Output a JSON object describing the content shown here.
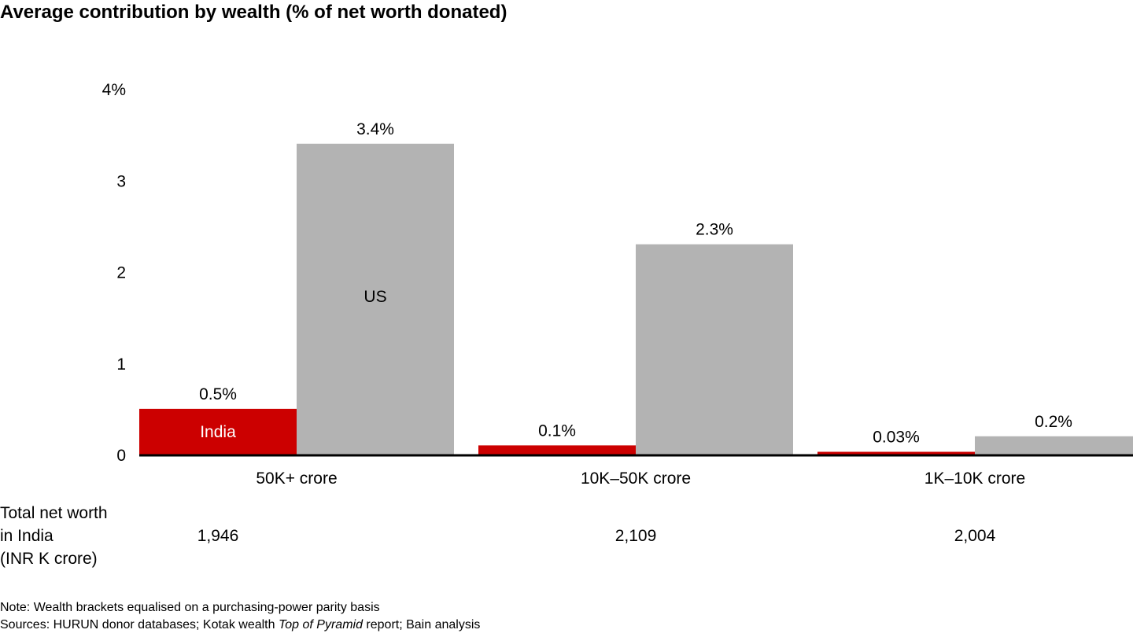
{
  "title": "Average contribution by wealth (% of net worth donated)",
  "chart_data": {
    "type": "bar",
    "title": "Average contribution by wealth (% of net worth donated)",
    "categories": [
      "50K+ crore",
      "10K–50K crore",
      "1K–10K crore"
    ],
    "series": [
      {
        "name": "India",
        "color": "#cc0000",
        "values": [
          0.5,
          0.1,
          0.03
        ],
        "labels": [
          "0.5%",
          "0.1%",
          "0.03%"
        ]
      },
      {
        "name": "US",
        "color": "#b3b3b3",
        "values": [
          3.4,
          2.3,
          0.2
        ],
        "labels": [
          "3.4%",
          "2.3%",
          "0.2%"
        ]
      }
    ],
    "yticks": [
      {
        "value": 0,
        "label": "0"
      },
      {
        "value": 1,
        "label": "1"
      },
      {
        "value": 2,
        "label": "2"
      },
      {
        "value": 3,
        "label": "3"
      },
      {
        "value": 4,
        "label": "4%"
      }
    ],
    "ylim": [
      0,
      4
    ],
    "xlabel": "",
    "ylabel": "",
    "grid": false,
    "legend": "inside-bars"
  },
  "net_worth": {
    "label_lines": [
      "Total net worth",
      "in India",
      "(INR K crore)"
    ],
    "values": [
      "1,946",
      "2,109",
      "2,004"
    ]
  },
  "note": "Note: Wealth brackets equalised on a purchasing-power parity basis",
  "sources": {
    "prefix": "Sources: HURUN donor databases; Kotak wealth ",
    "italic": "Top of Pyramid",
    "suffix": " report; Bain analysis"
  }
}
